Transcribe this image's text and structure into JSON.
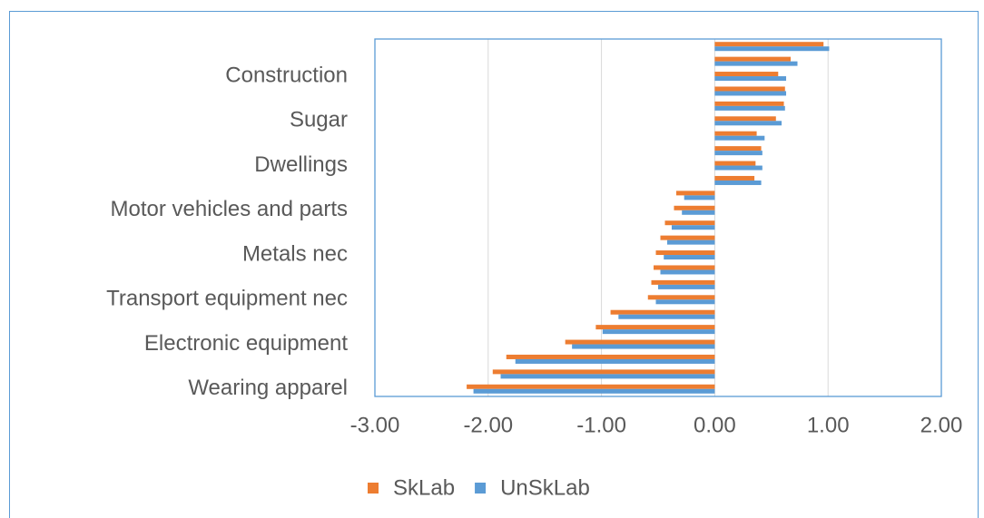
{
  "chart_data": {
    "type": "hbar",
    "categories": [
      "Wearing apparel",
      null,
      null,
      "Electronic equipment",
      null,
      null,
      "Transport equipment nec",
      null,
      null,
      "Metals nec",
      null,
      null,
      "Motor vehicles and parts",
      null,
      null,
      "Dwellings",
      null,
      null,
      "Sugar",
      null,
      null,
      "Construction",
      null,
      null
    ],
    "series": [
      {
        "name": "SkLab",
        "color": "#ed7d31",
        "values": [
          -2.19,
          -1.96,
          -1.84,
          -1.32,
          -1.05,
          -0.92,
          -0.59,
          -0.56,
          -0.54,
          -0.52,
          -0.48,
          -0.44,
          -0.36,
          -0.34,
          0.35,
          0.36,
          0.41,
          0.37,
          0.54,
          0.61,
          0.62,
          0.56,
          0.67,
          0.96
        ]
      },
      {
        "name": "UnSkLab",
        "color": "#5b9bd5",
        "values": [
          -2.13,
          -1.89,
          -1.76,
          -1.26,
          -0.99,
          -0.85,
          -0.52,
          -0.5,
          -0.48,
          -0.45,
          -0.42,
          -0.38,
          -0.29,
          -0.27,
          0.41,
          0.42,
          0.42,
          0.44,
          0.59,
          0.62,
          0.63,
          0.63,
          0.73,
          1.01
        ]
      }
    ],
    "xlim": [
      -3,
      2
    ],
    "xticks": [
      {
        "value": -3,
        "label": "-3.00"
      },
      {
        "value": -2,
        "label": "-2.00"
      },
      {
        "value": -1,
        "label": "-1.00"
      },
      {
        "value": 0,
        "label": "0.00"
      },
      {
        "value": 1,
        "label": "1.00"
      },
      {
        "value": 2,
        "label": "2.00"
      }
    ],
    "grid": true,
    "legend": "bottom"
  }
}
